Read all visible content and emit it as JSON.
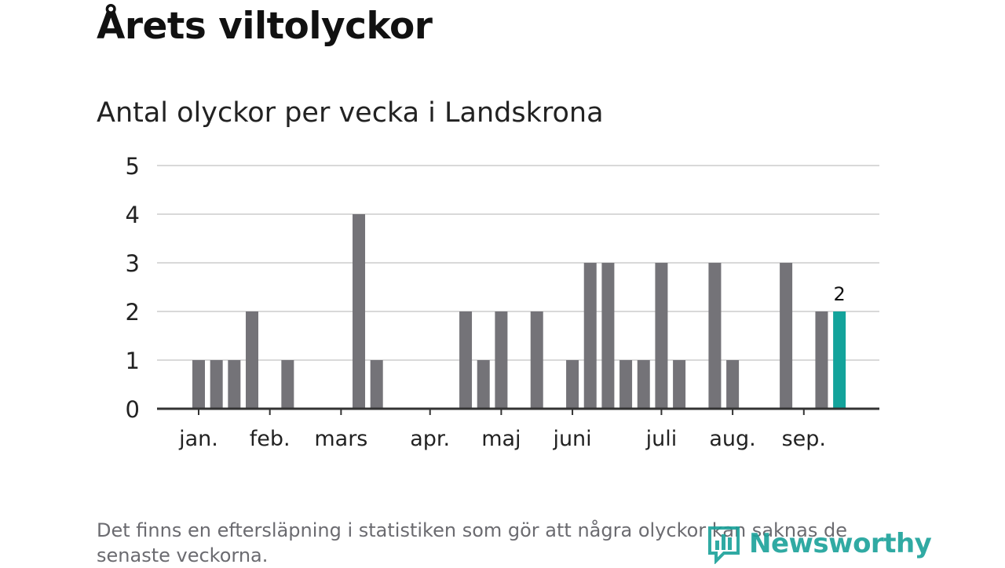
{
  "header": {
    "title": "Årets viltolyckor",
    "subtitle": "Antal olyckor per vecka i Landskrona"
  },
  "chart_data": {
    "type": "bar",
    "title": "Årets viltolyckor",
    "subtitle": "Antal olyckor per vecka i Landskrona",
    "xlabel": "",
    "ylabel": "",
    "ylim": [
      0,
      5
    ],
    "y_ticks": [
      "0",
      "1",
      "2",
      "3",
      "4",
      "5"
    ],
    "x_tick_labels": [
      "jan.",
      "feb.",
      "mars",
      "apr.",
      "maj",
      "juni",
      "juli",
      "aug.",
      "sep."
    ],
    "grid": true,
    "values": [
      1,
      1,
      1,
      2,
      0,
      1,
      0,
      0,
      0,
      4,
      1,
      0,
      0,
      0,
      0,
      2,
      1,
      2,
      0,
      2,
      0,
      1,
      3,
      3,
      1,
      1,
      3,
      1,
      0,
      3,
      1,
      0,
      0,
      3,
      0,
      2,
      2
    ],
    "highlight_last": true,
    "highlight_label": "2",
    "colors": {
      "bar": "#747378",
      "highlight": "#13a39b",
      "grid": "#d9d9d9",
      "axis": "#333333"
    }
  },
  "footnote": "Det finns en eftersläpning i statistiken som gör att några olyckor kan saknas de senaste veckorna.",
  "logo": {
    "text": "Newsworthy",
    "icon": "newsworthy-logo-icon"
  }
}
